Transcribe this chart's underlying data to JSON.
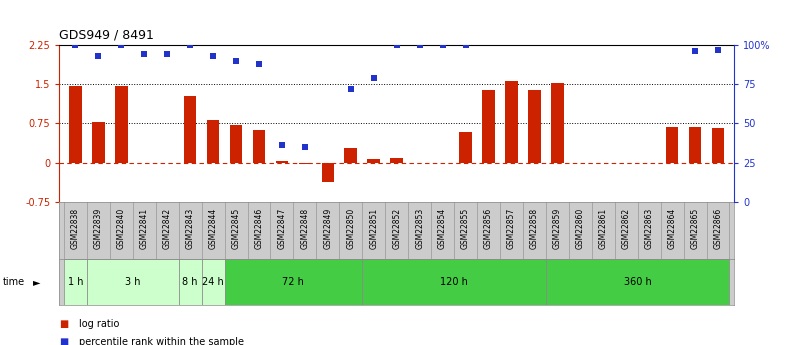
{
  "title": "GDS949 / 8491",
  "samples": [
    "GSM22838",
    "GSM22839",
    "GSM22840",
    "GSM22841",
    "GSM22842",
    "GSM22843",
    "GSM22844",
    "GSM22845",
    "GSM22846",
    "GSM22847",
    "GSM22848",
    "GSM22849",
    "GSM22850",
    "GSM22851",
    "GSM22852",
    "GSM22853",
    "GSM22854",
    "GSM22855",
    "GSM22856",
    "GSM22857",
    "GSM22858",
    "GSM22859",
    "GSM22860",
    "GSM22861",
    "GSM22862",
    "GSM22863",
    "GSM22864",
    "GSM22865",
    "GSM22866"
  ],
  "log_ratio": [
    1.47,
    0.78,
    1.47,
    0.0,
    0.0,
    1.28,
    0.82,
    0.72,
    0.62,
    0.03,
    -0.03,
    -0.38,
    0.27,
    0.06,
    0.08,
    0.0,
    0.0,
    0.58,
    1.38,
    1.55,
    1.38,
    1.52,
    0.0,
    0.0,
    0.0,
    0.0,
    0.68,
    0.68,
    0.66
  ],
  "percentile_rank": [
    100,
    93,
    100,
    94,
    94,
    100,
    93,
    90,
    88,
    36,
    35,
    null,
    72,
    79,
    100,
    100,
    100,
    100,
    null,
    null,
    null,
    null,
    null,
    null,
    null,
    null,
    null,
    96,
    97
  ],
  "time_groups": [
    {
      "label": "1 h",
      "start": 0,
      "end": 1,
      "color": "#ccffcc"
    },
    {
      "label": "3 h",
      "start": 1,
      "end": 5,
      "color": "#ccffcc"
    },
    {
      "label": "8 h",
      "start": 5,
      "end": 6,
      "color": "#ccffcc"
    },
    {
      "label": "24 h",
      "start": 6,
      "end": 7,
      "color": "#ccffcc"
    },
    {
      "label": "72 h",
      "start": 7,
      "end": 13,
      "color": "#44cc44"
    },
    {
      "label": "120 h",
      "start": 13,
      "end": 21,
      "color": "#44cc44"
    },
    {
      "label": "360 h",
      "start": 21,
      "end": 29,
      "color": "#44cc44"
    }
  ],
  "bar_color": "#cc2200",
  "dot_color": "#2233cc",
  "left_ylim": [
    -0.75,
    2.25
  ],
  "right_ylim": [
    0,
    100
  ],
  "left_yticks": [
    -0.75,
    0,
    0.75,
    1.5,
    2.25
  ],
  "right_yticks": [
    0,
    25,
    50,
    75,
    100
  ],
  "right_yticklabels": [
    "0",
    "25",
    "50",
    "75",
    "100%"
  ],
  "bg_color": "#ffffff",
  "label_band_color": "#cccccc",
  "time_band_outline": "#aaaaaa"
}
